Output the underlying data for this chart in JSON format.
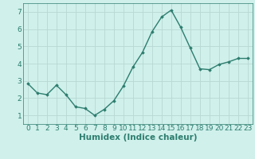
{
  "x": [
    0,
    1,
    2,
    3,
    4,
    5,
    6,
    7,
    8,
    9,
    10,
    11,
    12,
    13,
    14,
    15,
    16,
    17,
    18,
    19,
    20,
    21,
    22,
    23
  ],
  "y": [
    2.85,
    2.3,
    2.2,
    2.75,
    2.2,
    1.5,
    1.4,
    1.0,
    1.35,
    1.85,
    2.7,
    3.8,
    4.65,
    5.85,
    6.7,
    7.1,
    6.1,
    4.9,
    3.7,
    3.65,
    3.95,
    4.1,
    4.3,
    4.3
  ],
  "xlabel": "Humidex (Indice chaleur)",
  "line_color": "#2d7d6e",
  "marker": "D",
  "marker_size": 1.8,
  "line_width": 1.0,
  "bg_color": "#cff0eb",
  "grid_color": "#b8d8d2",
  "tick_color": "#2d7d6e",
  "label_color": "#2d7d6e",
  "xlim": [
    -0.5,
    23.5
  ],
  "ylim": [
    0.5,
    7.5
  ],
  "yticks": [
    1,
    2,
    3,
    4,
    5,
    6,
    7
  ],
  "xticks": [
    0,
    1,
    2,
    3,
    4,
    5,
    6,
    7,
    8,
    9,
    10,
    11,
    12,
    13,
    14,
    15,
    16,
    17,
    18,
    19,
    20,
    21,
    22,
    23
  ],
  "xtick_labels": [
    "0",
    "1",
    "2",
    "3",
    "4",
    "5",
    "6",
    "7",
    "8",
    "9",
    "10",
    "11",
    "12",
    "13",
    "14",
    "15",
    "16",
    "17",
    "18",
    "19",
    "20",
    "21",
    "22",
    "23"
  ],
  "fontsize_ticks": 6.5,
  "fontsize_xlabel": 7.5
}
